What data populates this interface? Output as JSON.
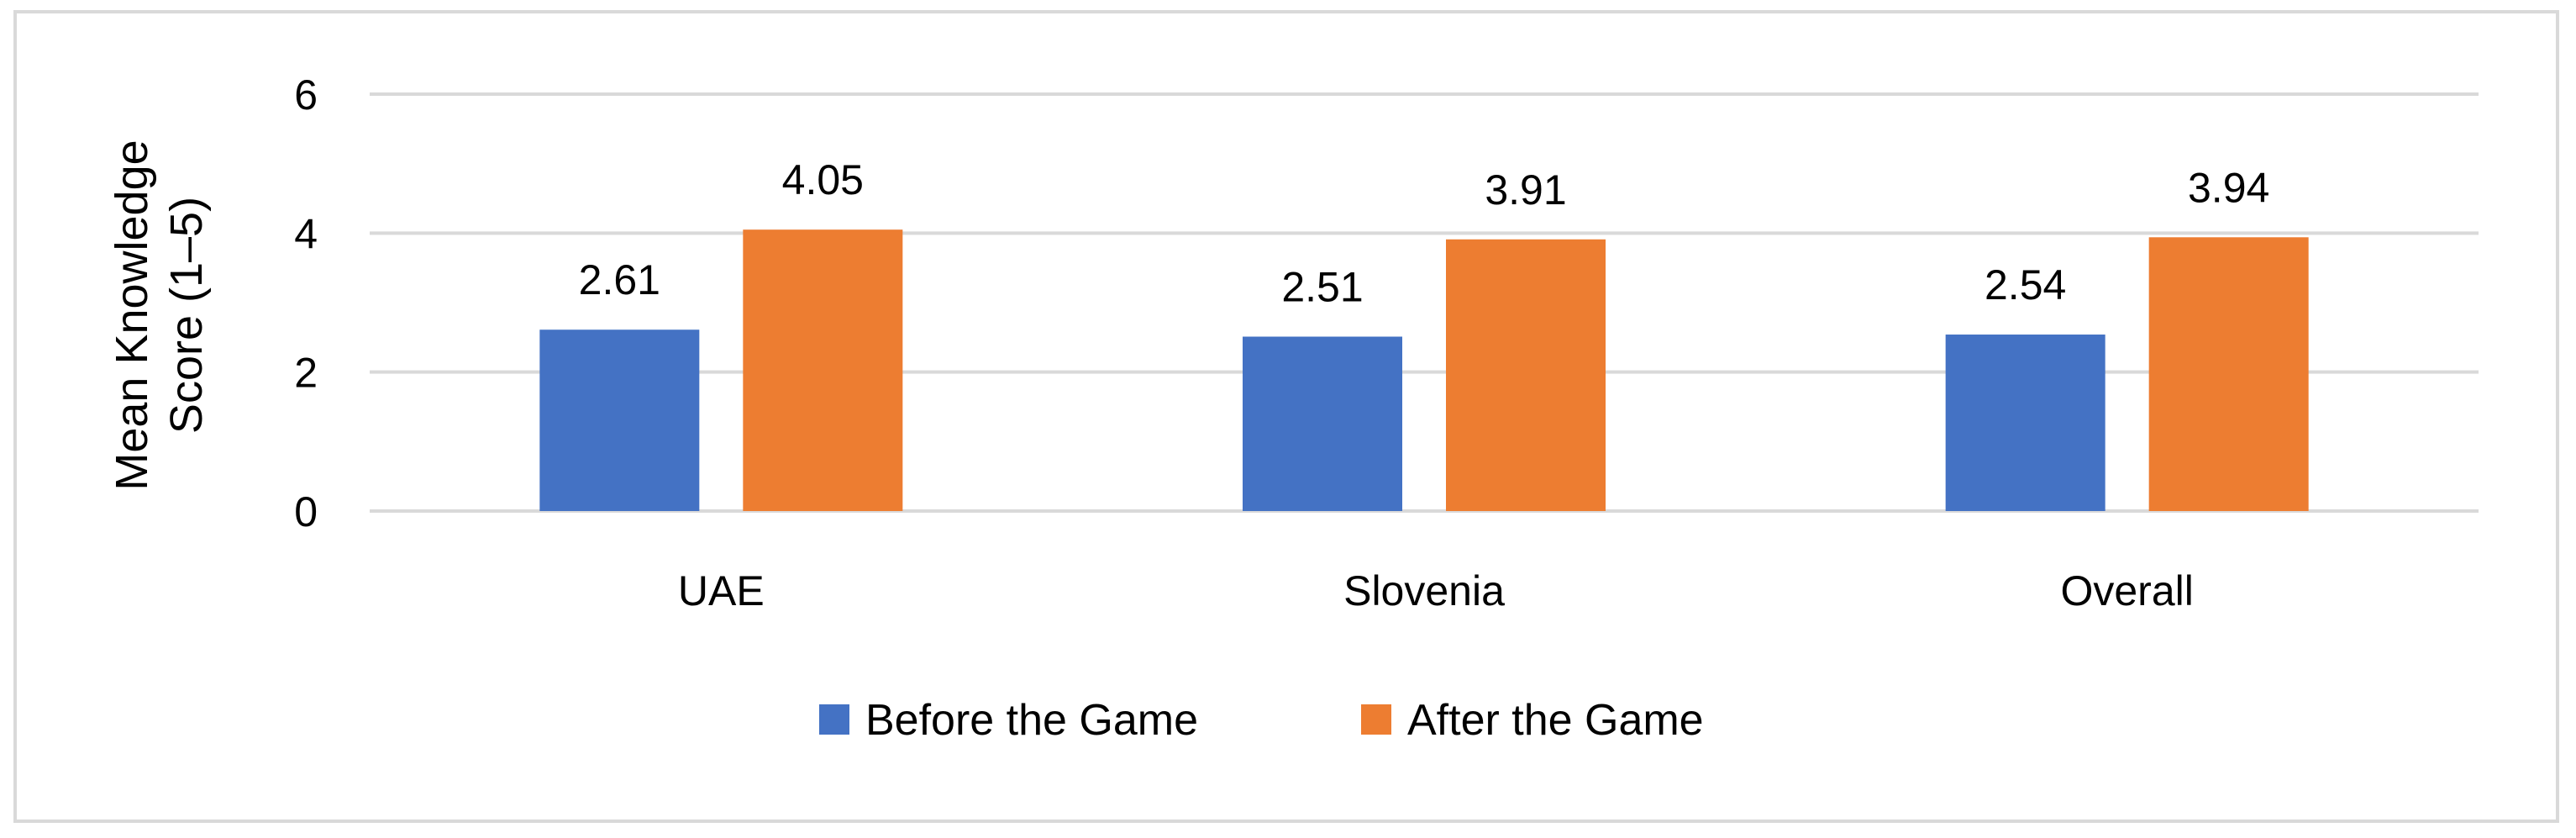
{
  "chart_data": {
    "type": "bar",
    "categories": [
      "UAE",
      "Slovenia",
      "Overall"
    ],
    "series": [
      {
        "name": "Before the Game",
        "values": [
          2.61,
          2.51,
          2.54
        ],
        "labels": [
          "2.61",
          "2.51",
          "2.54"
        ],
        "color": "#4472C4"
      },
      {
        "name": "After the Game",
        "values": [
          4.05,
          3.91,
          3.94
        ],
        "labels": [
          "4.05",
          "3.91",
          "3.94"
        ],
        "color": "#ED7D31"
      }
    ],
    "title": "",
    "xlabel": "",
    "ylabel_lines": [
      "Mean Knowledge",
      "Score (1–5)"
    ],
    "ylim": [
      0,
      6
    ],
    "yticks": [
      "0",
      "2",
      "4",
      "6"
    ],
    "grid": true,
    "grid_color": "#d9d9d9",
    "legend_position": "bottom"
  }
}
